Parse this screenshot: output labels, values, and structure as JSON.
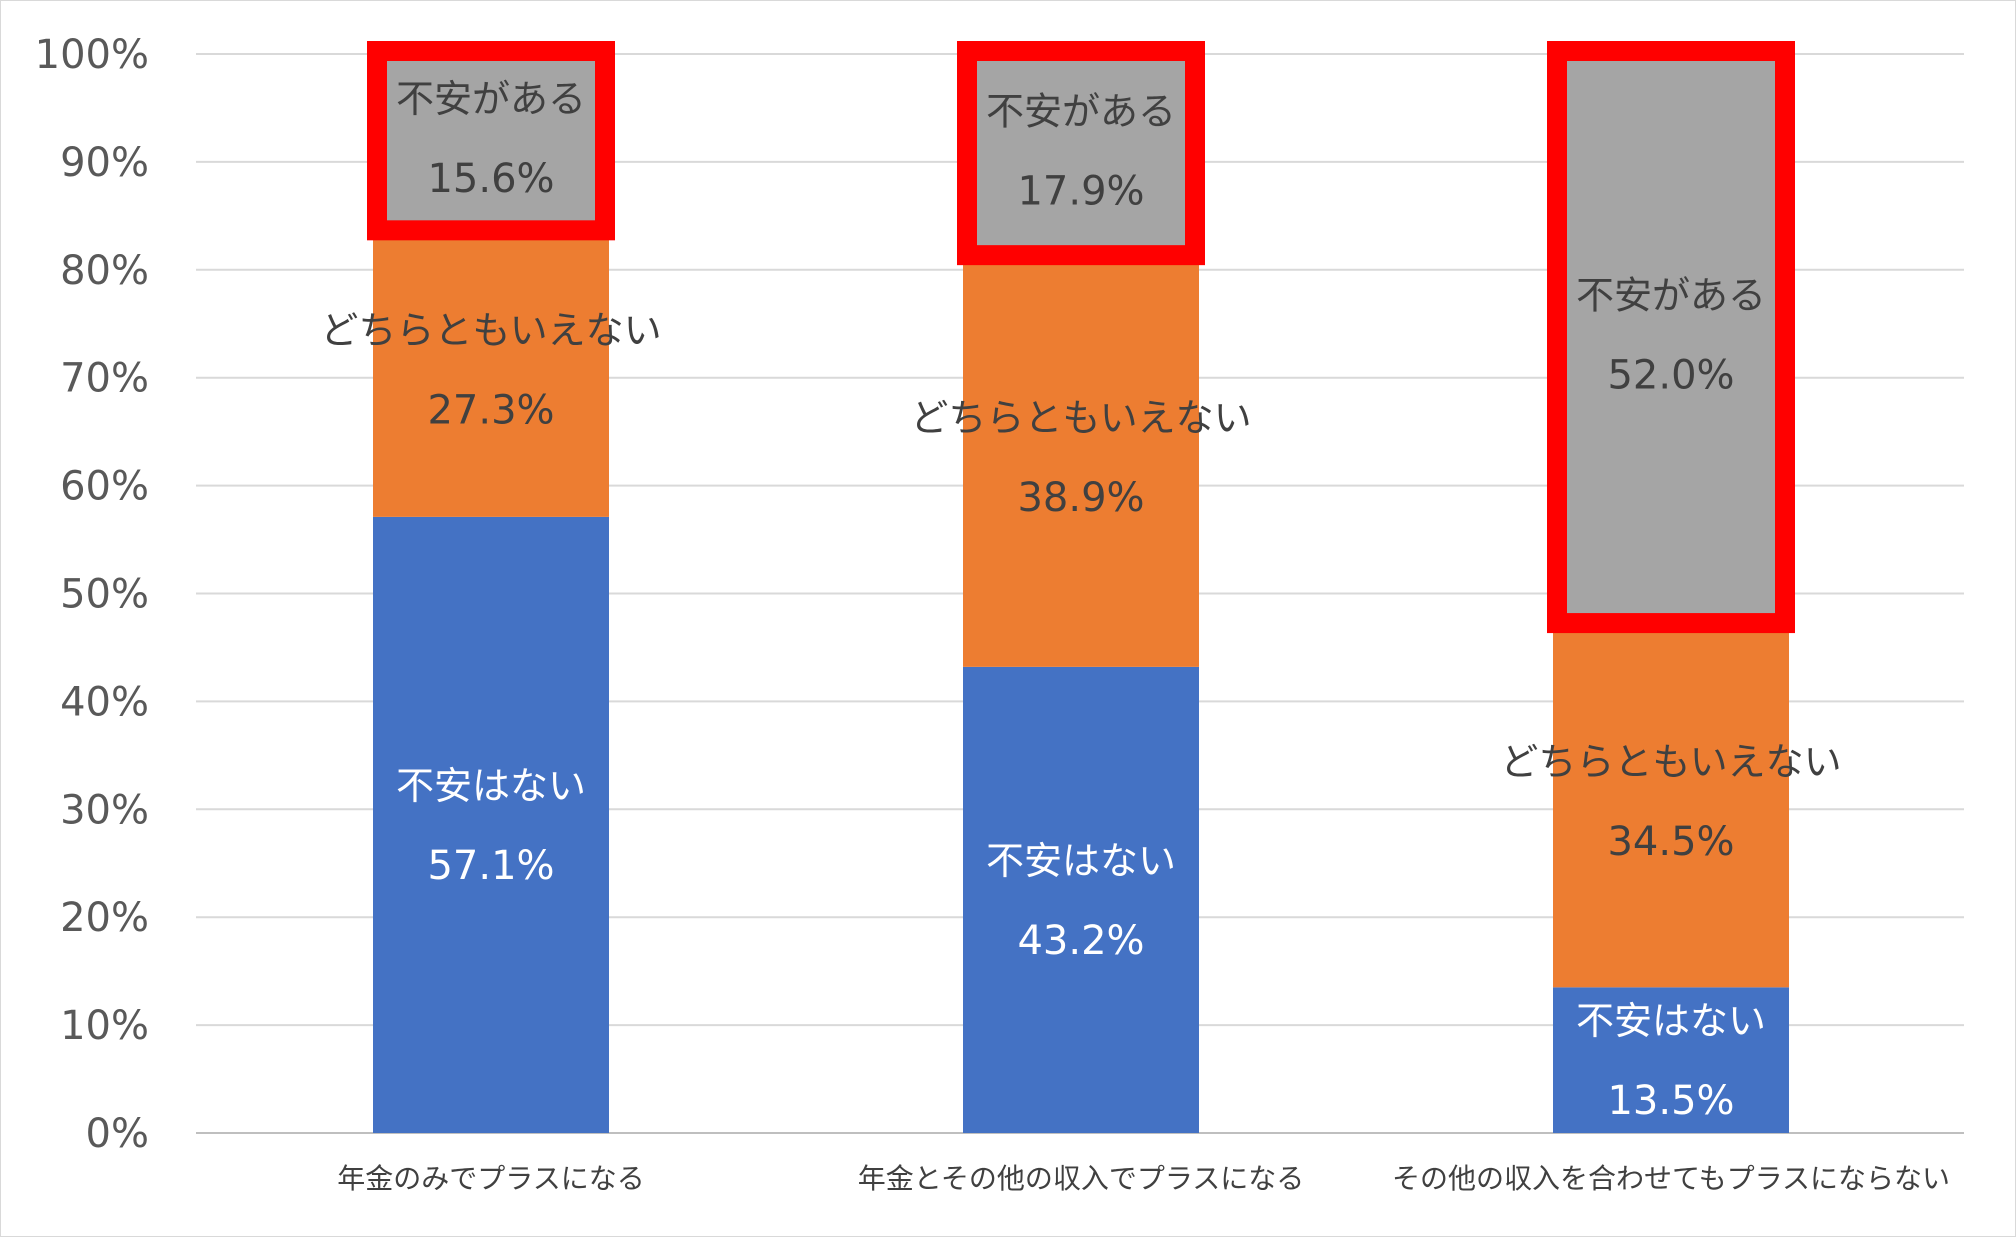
{
  "chart_data": {
    "type": "bar",
    "stacked": true,
    "percent_stacked": true,
    "categories": [
      "年金のみでプラスになる",
      "年金とその他の収入でプラスになる",
      "その他の収入を合わせてもプラスにならない"
    ],
    "series": [
      {
        "name": "不安はない",
        "values": [
          57.1,
          43.2,
          13.5
        ],
        "value_labels": [
          "57.1%",
          "43.2%",
          "13.5%"
        ],
        "color": "#4472C4",
        "text_color": "#FFFFFF"
      },
      {
        "name": "どちらともいえない",
        "values": [
          27.3,
          38.9,
          34.5
        ],
        "value_labels": [
          "27.3%",
          "38.9%",
          "34.5%"
        ],
        "color": "#ED7D31",
        "text_color": "#404040"
      },
      {
        "name": "不安がある",
        "values": [
          15.6,
          17.9,
          52.0
        ],
        "value_labels": [
          "15.6%",
          "17.9%",
          "52.0%"
        ],
        "color": "#A5A5A5",
        "text_color": "#404040"
      }
    ],
    "ylim": [
      0,
      100
    ],
    "yticks": [
      "0%",
      "10%",
      "20%",
      "30%",
      "40%",
      "50%",
      "60%",
      "70%",
      "80%",
      "90%",
      "100%"
    ],
    "grid": true,
    "legend": "none",
    "highlight": {
      "series": "不安がある",
      "color": "#FF0000"
    },
    "title": "",
    "xlabel": "",
    "ylabel": ""
  }
}
